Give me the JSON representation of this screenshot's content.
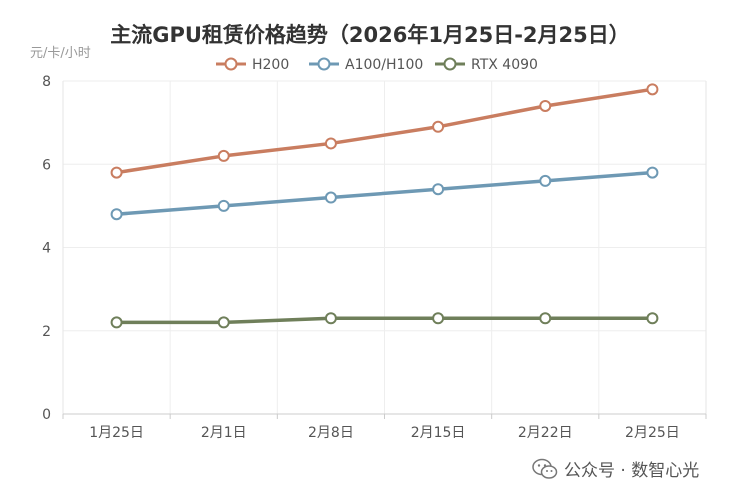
{
  "chart_data": {
    "type": "line",
    "title": "主流GPU租赁价格趋势（2026年1月25日-2月25日）",
    "ylabel": "元/卡/小时",
    "xlabel": "",
    "categories": [
      "1月25日",
      "2月1日",
      "2月8日",
      "2月15日",
      "2月22日",
      "2月25日"
    ],
    "ylim": [
      0,
      8
    ],
    "yticks": [
      0,
      2,
      4,
      6,
      8
    ],
    "grid": true,
    "legend_position": "top",
    "series": [
      {
        "name": "H200",
        "color": "#c97d60",
        "values": [
          5.8,
          6.2,
          6.5,
          6.9,
          7.4,
          7.8
        ]
      },
      {
        "name": "A100/H100",
        "color": "#6e99b4",
        "values": [
          4.8,
          5.0,
          5.2,
          5.4,
          5.6,
          5.8
        ]
      },
      {
        "name": "RTX 4090",
        "color": "#6f7f5a",
        "values": [
          2.2,
          2.2,
          2.3,
          2.3,
          2.3,
          2.3
        ]
      }
    ]
  },
  "watermark": {
    "icon": "wechat-icon",
    "text": "公众号 · 数智心光"
  }
}
